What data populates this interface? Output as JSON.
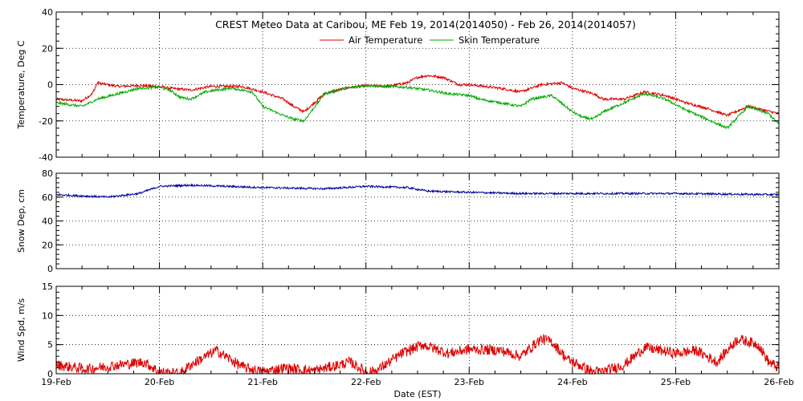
{
  "chart_data": {
    "title": "CREST Meteo Data at Caribou, ME   Feb 19, 2014(2014050) - Feb 26, 2014(2014057)",
    "xlabel": "Date (EST)",
    "x_ticks": [
      "19-Feb",
      "20-Feb",
      "21-Feb",
      "22-Feb",
      "23-Feb",
      "24-Feb",
      "25-Feb",
      "26-Feb"
    ],
    "x_range_days": [
      0,
      7
    ],
    "grid": true,
    "panels": [
      {
        "type": "line",
        "ylabel": "Temperature, Deg C",
        "ylim": [
          -40,
          40
        ],
        "yticks": [
          -40,
          -20,
          0,
          20,
          40
        ],
        "legend_position": "top-center",
        "series": [
          {
            "name": "Air Temperature",
            "color": "#dd0000",
            "x": [
              0,
              0.25,
              0.35,
              0.4,
              0.6,
              0.8,
              1.0,
              1.1,
              1.3,
              1.5,
              1.8,
              2.0,
              2.2,
              2.3,
              2.4,
              2.6,
              2.8,
              3.0,
              3.2,
              3.4,
              3.5,
              3.6,
              3.75,
              3.9,
              4.0,
              4.3,
              4.5,
              4.7,
              4.9,
              5.0,
              5.2,
              5.3,
              5.5,
              5.7,
              5.9,
              6.1,
              6.3,
              6.5,
              6.7,
              6.85,
              7.0
            ],
            "y": [
              -8,
              -9,
              -5,
              1,
              -1,
              -0.5,
              -1,
              -2,
              -3,
              -1,
              -1,
              -4,
              -8,
              -12,
              -15,
              -5,
              -2,
              -0.5,
              -1,
              1,
              4,
              5,
              4,
              0,
              0,
              -2,
              -4,
              0,
              1,
              -2,
              -5,
              -8,
              -8,
              -4,
              -6,
              -10,
              -13,
              -17,
              -12,
              -14,
              -16
            ]
          },
          {
            "name": "Skin Temperature",
            "color": "#00aa00",
            "x": [
              0,
              0.25,
              0.4,
              0.6,
              0.8,
              1.0,
              1.1,
              1.2,
              1.3,
              1.45,
              1.55,
              1.7,
              1.9,
              2.0,
              2.2,
              2.3,
              2.4,
              2.6,
              2.8,
              3.0,
              3.2,
              3.4,
              3.6,
              3.8,
              4.0,
              4.1,
              4.3,
              4.5,
              4.6,
              4.8,
              5.0,
              5.1,
              5.2,
              5.3,
              5.5,
              5.7,
              5.9,
              6.1,
              6.3,
              6.5,
              6.7,
              6.9,
              7.0
            ],
            "y": [
              -10,
              -12,
              -8,
              -5,
              -2,
              -1.5,
              -3,
              -7,
              -8,
              -4,
              -3,
              -2,
              -4,
              -12,
              -17,
              -19,
              -20,
              -5,
              -2,
              -0.5,
              -1,
              -1.5,
              -3,
              -5,
              -6,
              -8,
              -10,
              -12,
              -8,
              -6,
              -15,
              -18,
              -19,
              -15,
              -10,
              -5,
              -8,
              -14,
              -19,
              -24,
              -12,
              -16,
              -22
            ]
          }
        ]
      },
      {
        "type": "line",
        "ylabel": "Snow Dep, cm",
        "ylim": [
          0,
          80
        ],
        "yticks": [
          0,
          20,
          40,
          60,
          80
        ],
        "series": [
          {
            "name": "",
            "color": "#000099",
            "x": [
              0,
              0.5,
              0.8,
              1.0,
              1.3,
              2.0,
              2.6,
              2.8,
              3.0,
              3.4,
              3.6,
              4.0,
              4.5,
              5.0,
              6.0,
              7.0
            ],
            "y": [
              62,
              60,
              63,
              69,
              70,
              68,
              67,
              68,
              69,
              68,
              65,
              64,
              63,
              63,
              63,
              62
            ]
          }
        ]
      },
      {
        "type": "line",
        "ylabel": "Wind Spd, m/s",
        "ylim": [
          0,
          15
        ],
        "yticks": [
          0,
          5,
          10,
          15
        ],
        "series": [
          {
            "name": "",
            "color": "#dd0000",
            "x": [
              0,
              0.3,
              0.6,
              0.85,
              1.0,
              1.2,
              1.3,
              1.55,
              1.8,
              2.0,
              2.2,
              2.5,
              2.85,
              3.0,
              3.1,
              3.35,
              3.55,
              3.8,
              4.0,
              4.3,
              4.5,
              4.7,
              4.8,
              4.95,
              5.2,
              5.3,
              5.5,
              5.7,
              6.0,
              6.2,
              6.4,
              6.6,
              6.8,
              6.9,
              7.0
            ],
            "y": [
              1.5,
              0.8,
              1.5,
              2,
              0.3,
              0,
              1.5,
              4,
              1.2,
              0.3,
              1,
              0.5,
              2,
              0.3,
              0.5,
              3.5,
              5,
              3.5,
              4.2,
              4,
              3,
              6,
              5.5,
              2.5,
              0.3,
              0.4,
              1.5,
              4.5,
              3.5,
              4,
              2,
              6,
              5,
              2,
              1
            ]
          }
        ]
      }
    ]
  }
}
